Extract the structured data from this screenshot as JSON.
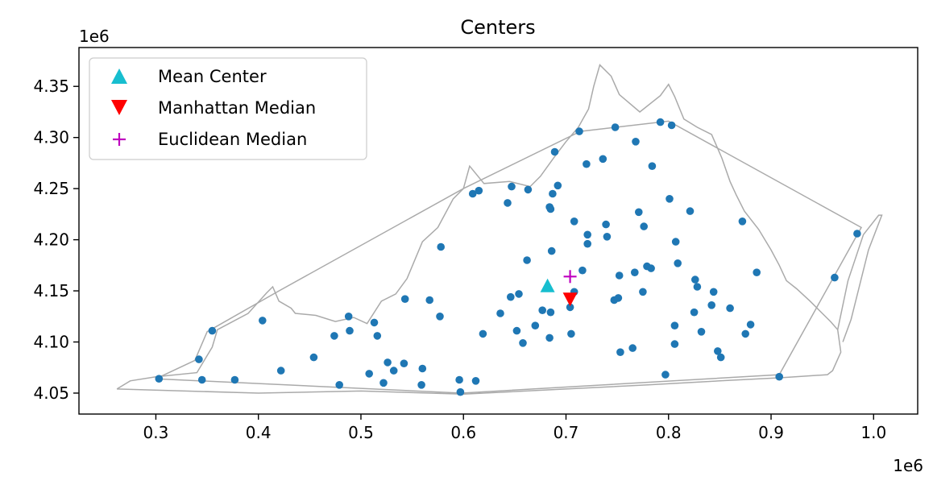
{
  "chart_data": {
    "type": "scatter",
    "title": "Centers",
    "xlabel": "",
    "ylabel": "",
    "x_offset_label": "1e6",
    "y_offset_label": "1e6",
    "xlim": [
      0.225,
      1.043
    ],
    "ylim": [
      4.0295,
      4.388
    ],
    "x_ticks": [
      0.3,
      0.4,
      0.5,
      0.6,
      0.7,
      0.8,
      0.9,
      1.0
    ],
    "x_tick_labels": [
      "0.3",
      "0.4",
      "0.5",
      "0.6",
      "0.7",
      "0.8",
      "0.9",
      "1.0"
    ],
    "y_ticks": [
      4.05,
      4.1,
      4.15,
      4.2,
      4.25,
      4.3,
      4.35
    ],
    "y_tick_labels": [
      "4.05",
      "4.10",
      "4.15",
      "4.20",
      "4.25",
      "4.30",
      "4.35"
    ],
    "grid": false,
    "legend_position": "top-left",
    "colors": {
      "points": "#1f77b4",
      "mean_center": "#17becf",
      "manhattan_median": "#ff0000",
      "euclidean_median": "#bf00bf",
      "boundary": "#aaaaaa"
    },
    "boundary": [
      [
        0.262,
        4.054
      ],
      [
        0.275,
        4.062
      ],
      [
        0.3,
        4.066
      ],
      [
        0.34,
        4.07
      ],
      [
        0.355,
        4.095
      ],
      [
        0.36,
        4.112
      ],
      [
        0.39,
        4.128
      ],
      [
        0.408,
        4.148
      ],
      [
        0.414,
        4.154
      ],
      [
        0.42,
        4.14
      ],
      [
        0.432,
        4.133
      ],
      [
        0.436,
        4.128
      ],
      [
        0.456,
        4.126
      ],
      [
        0.475,
        4.12
      ],
      [
        0.493,
        4.124
      ],
      [
        0.506,
        4.118
      ],
      [
        0.52,
        4.14
      ],
      [
        0.534,
        4.147
      ],
      [
        0.545,
        4.162
      ],
      [
        0.56,
        4.198
      ],
      [
        0.575,
        4.212
      ],
      [
        0.59,
        4.24
      ],
      [
        0.6,
        4.25
      ],
      [
        0.606,
        4.272
      ],
      [
        0.62,
        4.255
      ],
      [
        0.645,
        4.257
      ],
      [
        0.665,
        4.252
      ],
      [
        0.675,
        4.262
      ],
      [
        0.688,
        4.28
      ],
      [
        0.7,
        4.296
      ],
      [
        0.712,
        4.31
      ],
      [
        0.722,
        4.328
      ],
      [
        0.727,
        4.35
      ],
      [
        0.733,
        4.371
      ],
      [
        0.744,
        4.36
      ],
      [
        0.752,
        4.342
      ],
      [
        0.772,
        4.325
      ],
      [
        0.792,
        4.341
      ],
      [
        0.8,
        4.352
      ],
      [
        0.806,
        4.34
      ],
      [
        0.815,
        4.318
      ],
      [
        0.828,
        4.31
      ],
      [
        0.842,
        4.303
      ],
      [
        0.852,
        4.28
      ],
      [
        0.86,
        4.257
      ],
      [
        0.866,
        4.244
      ],
      [
        0.874,
        4.228
      ],
      [
        0.888,
        4.21
      ],
      [
        0.9,
        4.19
      ],
      [
        0.908,
        4.175
      ],
      [
        0.915,
        4.16
      ],
      [
        0.925,
        4.152
      ],
      [
        0.938,
        4.14
      ],
      [
        0.95,
        4.128
      ],
      [
        0.958,
        4.12
      ],
      [
        0.965,
        4.112
      ],
      [
        0.968,
        4.09
      ],
      [
        0.96,
        4.072
      ],
      [
        0.955,
        4.068
      ],
      [
        0.91,
        4.065
      ],
      [
        0.85,
        4.062
      ],
      [
        0.78,
        4.058
      ],
      [
        0.7,
        4.054
      ],
      [
        0.6,
        4.049
      ],
      [
        0.5,
        4.052
      ],
      [
        0.4,
        4.05
      ],
      [
        0.262,
        4.054
      ]
    ],
    "hull": [
      [
        0.3,
        4.064
      ],
      [
        0.338,
        4.082
      ],
      [
        0.35,
        4.11
      ],
      [
        0.42,
        4.15
      ],
      [
        0.6,
        4.25
      ],
      [
        0.714,
        4.306
      ],
      [
        0.8,
        4.316
      ],
      [
        0.988,
        4.212
      ],
      [
        0.908,
        4.068
      ],
      [
        0.598,
        4.05
      ],
      [
        0.3,
        4.064
      ]
    ],
    "eastern_shore": [
      [
        0.965,
        4.112
      ],
      [
        0.975,
        4.16
      ],
      [
        0.99,
        4.205
      ],
      [
        1.005,
        4.224
      ],
      [
        1.008,
        4.224
      ],
      [
        0.995,
        4.19
      ],
      [
        0.985,
        4.15
      ],
      [
        0.978,
        4.122
      ],
      [
        0.97,
        4.1
      ]
    ],
    "points": [
      [
        0.303,
        4.064
      ],
      [
        0.345,
        4.063
      ],
      [
        0.377,
        4.063
      ],
      [
        0.342,
        4.083
      ],
      [
        0.355,
        4.111
      ],
      [
        0.404,
        4.121
      ],
      [
        0.422,
        4.072
      ],
      [
        0.454,
        4.085
      ],
      [
        0.474,
        4.106
      ],
      [
        0.479,
        4.058
      ],
      [
        0.488,
        4.125
      ],
      [
        0.489,
        4.111
      ],
      [
        0.508,
        4.069
      ],
      [
        0.513,
        4.119
      ],
      [
        0.516,
        4.106
      ],
      [
        0.522,
        4.06
      ],
      [
        0.526,
        4.08
      ],
      [
        0.532,
        4.072
      ],
      [
        0.542,
        4.079
      ],
      [
        0.543,
        4.142
      ],
      [
        0.559,
        4.058
      ],
      [
        0.56,
        4.074
      ],
      [
        0.567,
        4.141
      ],
      [
        0.577,
        4.125
      ],
      [
        0.578,
        4.193
      ],
      [
        0.596,
        4.063
      ],
      [
        0.597,
        4.051
      ],
      [
        0.609,
        4.245
      ],
      [
        0.612,
        4.062
      ],
      [
        0.615,
        4.248
      ],
      [
        0.619,
        4.108
      ],
      [
        0.636,
        4.128
      ],
      [
        0.643,
        4.236
      ],
      [
        0.646,
        4.144
      ],
      [
        0.647,
        4.252
      ],
      [
        0.652,
        4.111
      ],
      [
        0.654,
        4.147
      ],
      [
        0.658,
        4.099
      ],
      [
        0.662,
        4.18
      ],
      [
        0.663,
        4.249
      ],
      [
        0.67,
        4.116
      ],
      [
        0.677,
        4.131
      ],
      [
        0.684,
        4.104
      ],
      [
        0.685,
        4.129
      ],
      [
        0.684,
        4.232
      ],
      [
        0.685,
        4.23
      ],
      [
        0.686,
        4.189
      ],
      [
        0.687,
        4.245
      ],
      [
        0.689,
        4.286
      ],
      [
        0.692,
        4.253
      ],
      [
        0.704,
        4.134
      ],
      [
        0.705,
        4.108
      ],
      [
        0.708,
        4.149
      ],
      [
        0.708,
        4.218
      ],
      [
        0.713,
        4.306
      ],
      [
        0.716,
        4.17
      ],
      [
        0.72,
        4.274
      ],
      [
        0.721,
        4.205
      ],
      [
        0.721,
        4.196
      ],
      [
        0.736,
        4.279
      ],
      [
        0.739,
        4.215
      ],
      [
        0.74,
        4.203
      ],
      [
        0.747,
        4.141
      ],
      [
        0.748,
        4.31
      ],
      [
        0.751,
        4.143
      ],
      [
        0.752,
        4.165
      ],
      [
        0.753,
        4.09
      ],
      [
        0.765,
        4.094
      ],
      [
        0.767,
        4.168
      ],
      [
        0.768,
        4.296
      ],
      [
        0.771,
        4.227
      ],
      [
        0.775,
        4.149
      ],
      [
        0.776,
        4.213
      ],
      [
        0.779,
        4.174
      ],
      [
        0.783,
        4.172
      ],
      [
        0.784,
        4.272
      ],
      [
        0.792,
        4.315
      ],
      [
        0.797,
        4.068
      ],
      [
        0.801,
        4.24
      ],
      [
        0.803,
        4.312
      ],
      [
        0.806,
        4.116
      ],
      [
        0.806,
        4.098
      ],
      [
        0.807,
        4.198
      ],
      [
        0.809,
        4.177
      ],
      [
        0.821,
        4.228
      ],
      [
        0.825,
        4.129
      ],
      [
        0.826,
        4.161
      ],
      [
        0.828,
        4.154
      ],
      [
        0.832,
        4.11
      ],
      [
        0.842,
        4.136
      ],
      [
        0.844,
        4.149
      ],
      [
        0.848,
        4.091
      ],
      [
        0.851,
        4.085
      ],
      [
        0.86,
        4.133
      ],
      [
        0.872,
        4.218
      ],
      [
        0.875,
        4.108
      ],
      [
        0.88,
        4.117
      ],
      [
        0.886,
        4.168
      ],
      [
        0.908,
        4.066
      ],
      [
        0.962,
        4.163
      ],
      [
        0.984,
        4.206
      ]
    ],
    "mean_center": [
      0.682,
      4.155
    ],
    "manhattan_median": [
      0.704,
      4.142
    ],
    "euclidean_median": [
      0.704,
      4.164
    ],
    "legend": [
      {
        "label": "Mean Center",
        "marker": "triangle-up",
        "color": "#17becf"
      },
      {
        "label": "Manhattan Median",
        "marker": "triangle-down",
        "color": "#ff0000"
      },
      {
        "label": "Euclidean Median",
        "marker": "plus",
        "color": "#bf00bf"
      }
    ]
  }
}
